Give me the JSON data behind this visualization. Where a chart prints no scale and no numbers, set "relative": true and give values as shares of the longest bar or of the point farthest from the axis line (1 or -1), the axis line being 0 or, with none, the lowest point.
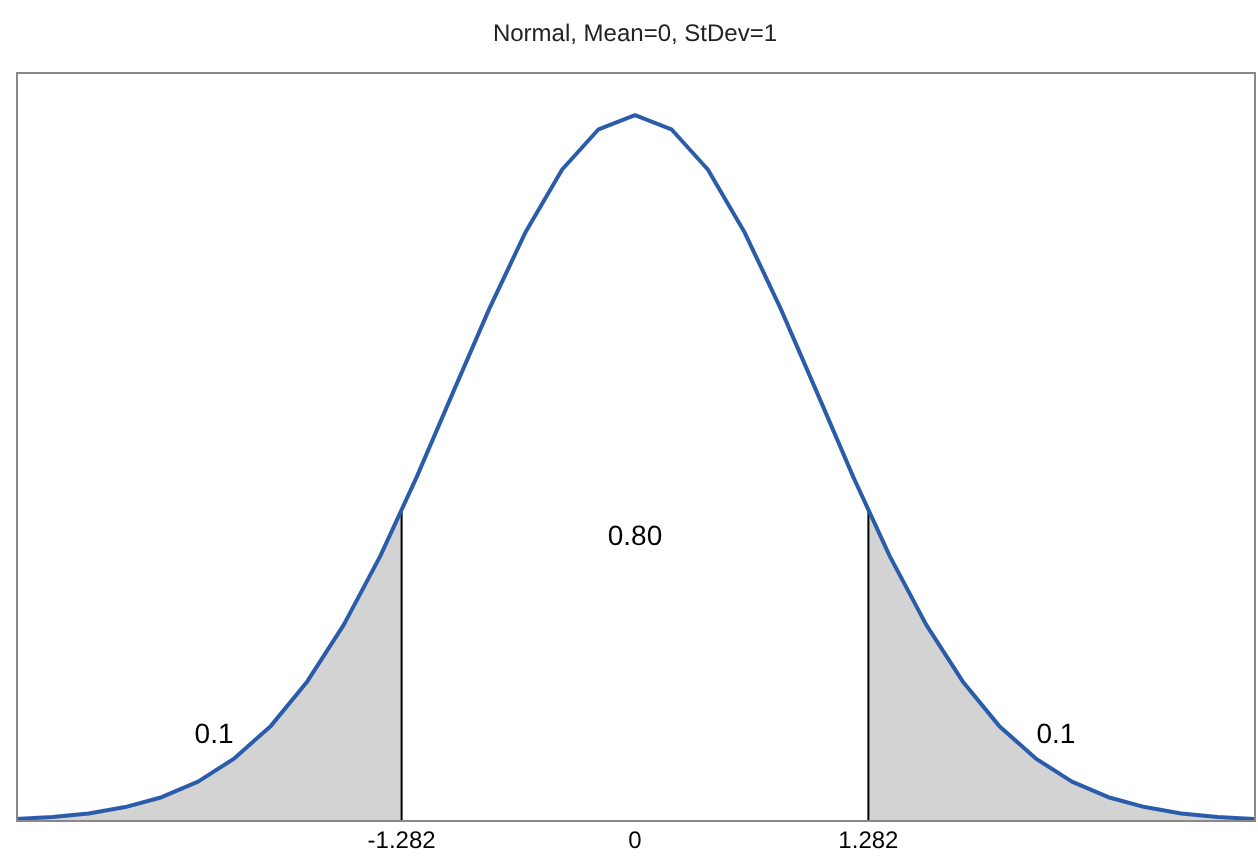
{
  "chart_data": {
    "type": "line",
    "title": "Normal, Mean=0, StDev=1",
    "relative": true,
    "x": [
      -3.4,
      -3.2,
      -3.0,
      -2.8,
      -2.6,
      -2.4,
      -2.2,
      -2.0,
      -1.8,
      -1.6,
      -1.4,
      -1.2,
      -1.0,
      -0.8,
      -0.6,
      -0.4,
      -0.2,
      0,
      0.2,
      0.4,
      0.6,
      0.8,
      1.0,
      1.2,
      1.4,
      1.6,
      1.8,
      2.0,
      2.2,
      2.4,
      2.6,
      2.8,
      3.0,
      3.2,
      3.4
    ],
    "series": [
      {
        "type": "area",
        "color": "#d3d3d3",
        "x": [
          -3.4,
          -3.2,
          -3.0,
          -2.8,
          -2.6,
          -2.4,
          -2.2,
          -2.0,
          -1.8,
          -1.6,
          -1.4,
          -1.282,
          -1.282
        ],
        "values": [
          0.003,
          0.006,
          0.011,
          0.02,
          0.034,
          0.056,
          0.089,
          0.135,
          0.198,
          0.278,
          0.375,
          0.44,
          0
        ]
      },
      {
        "type": "area",
        "color": "#d3d3d3",
        "x": [
          1.282,
          1.282,
          1.4,
          1.6,
          1.8,
          2.0,
          2.2,
          2.4,
          2.6,
          2.8,
          3.0,
          3.2,
          3.4
        ],
        "values": [
          0,
          0.44,
          0.375,
          0.278,
          0.198,
          0.135,
          0.089,
          0.056,
          0.034,
          0.02,
          0.011,
          0.006,
          0.003
        ]
      },
      {
        "color": "#2a5caa",
        "values": [
          0.003,
          0.006,
          0.011,
          0.02,
          0.034,
          0.056,
          0.089,
          0.135,
          0.198,
          0.278,
          0.375,
          0.487,
          0.607,
          0.726,
          0.835,
          0.923,
          0.98,
          1,
          0.98,
          0.923,
          0.835,
          0.726,
          0.607,
          0.487,
          0.375,
          0.278,
          0.198,
          0.135,
          0.089,
          0.056,
          0.034,
          0.02,
          0.011,
          0.006,
          0.003
        ]
      }
    ],
    "xlim": [
      -3.4,
      3.4
    ],
    "xticks": [
      -1.282,
      0,
      1.282
    ],
    "annotations": [
      "0.1",
      "0.80",
      "0.1"
    ],
    "grid": false,
    "legend": false,
    "tick_labels": "x",
    "marker": "none"
  }
}
